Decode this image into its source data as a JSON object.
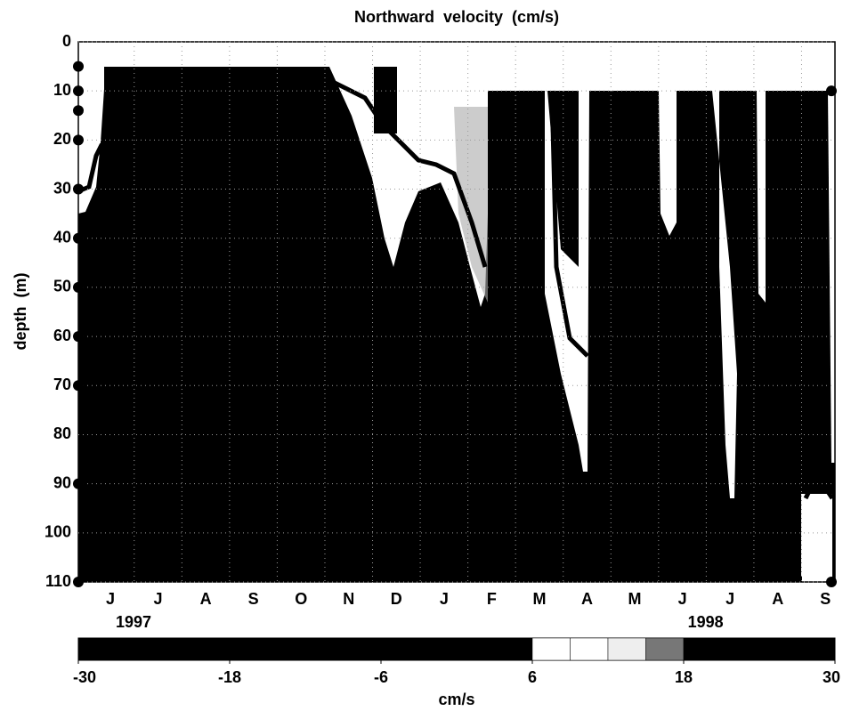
{
  "chart_data": {
    "type": "contour",
    "title": "Northward  velocity  (cm/s)",
    "ylabel": "depth  (m)",
    "categories": [
      "J",
      "J",
      "A",
      "S",
      "O",
      "N",
      "D",
      "J",
      "F",
      "M",
      "A",
      "M",
      "J",
      "J",
      "A",
      "S"
    ],
    "year_labels": [
      "1997",
      "1998"
    ],
    "ylim": [
      0,
      110
    ],
    "y_reversed": true,
    "yticks": [
      0,
      10,
      20,
      30,
      40,
      50,
      60,
      70,
      80,
      90,
      100,
      110
    ],
    "grid": true,
    "instruments": {
      "color": "#000000",
      "left_depths": [
        5,
        10,
        14,
        20,
        30,
        40,
        50,
        60,
        70,
        90,
        110
      ],
      "right_depths": [
        10,
        110
      ]
    },
    "colorbar": {
      "label": "cm/s",
      "lim": [
        -30,
        30
      ],
      "ticks": [
        -30,
        -18,
        -6,
        6,
        18,
        30
      ],
      "edges": [
        -30,
        6,
        9,
        12,
        15,
        18,
        30
      ],
      "colors": [
        "#000000",
        "#ffffff",
        "#ffffff",
        "#eeeeee",
        "#777777",
        "#000000"
      ]
    }
  }
}
